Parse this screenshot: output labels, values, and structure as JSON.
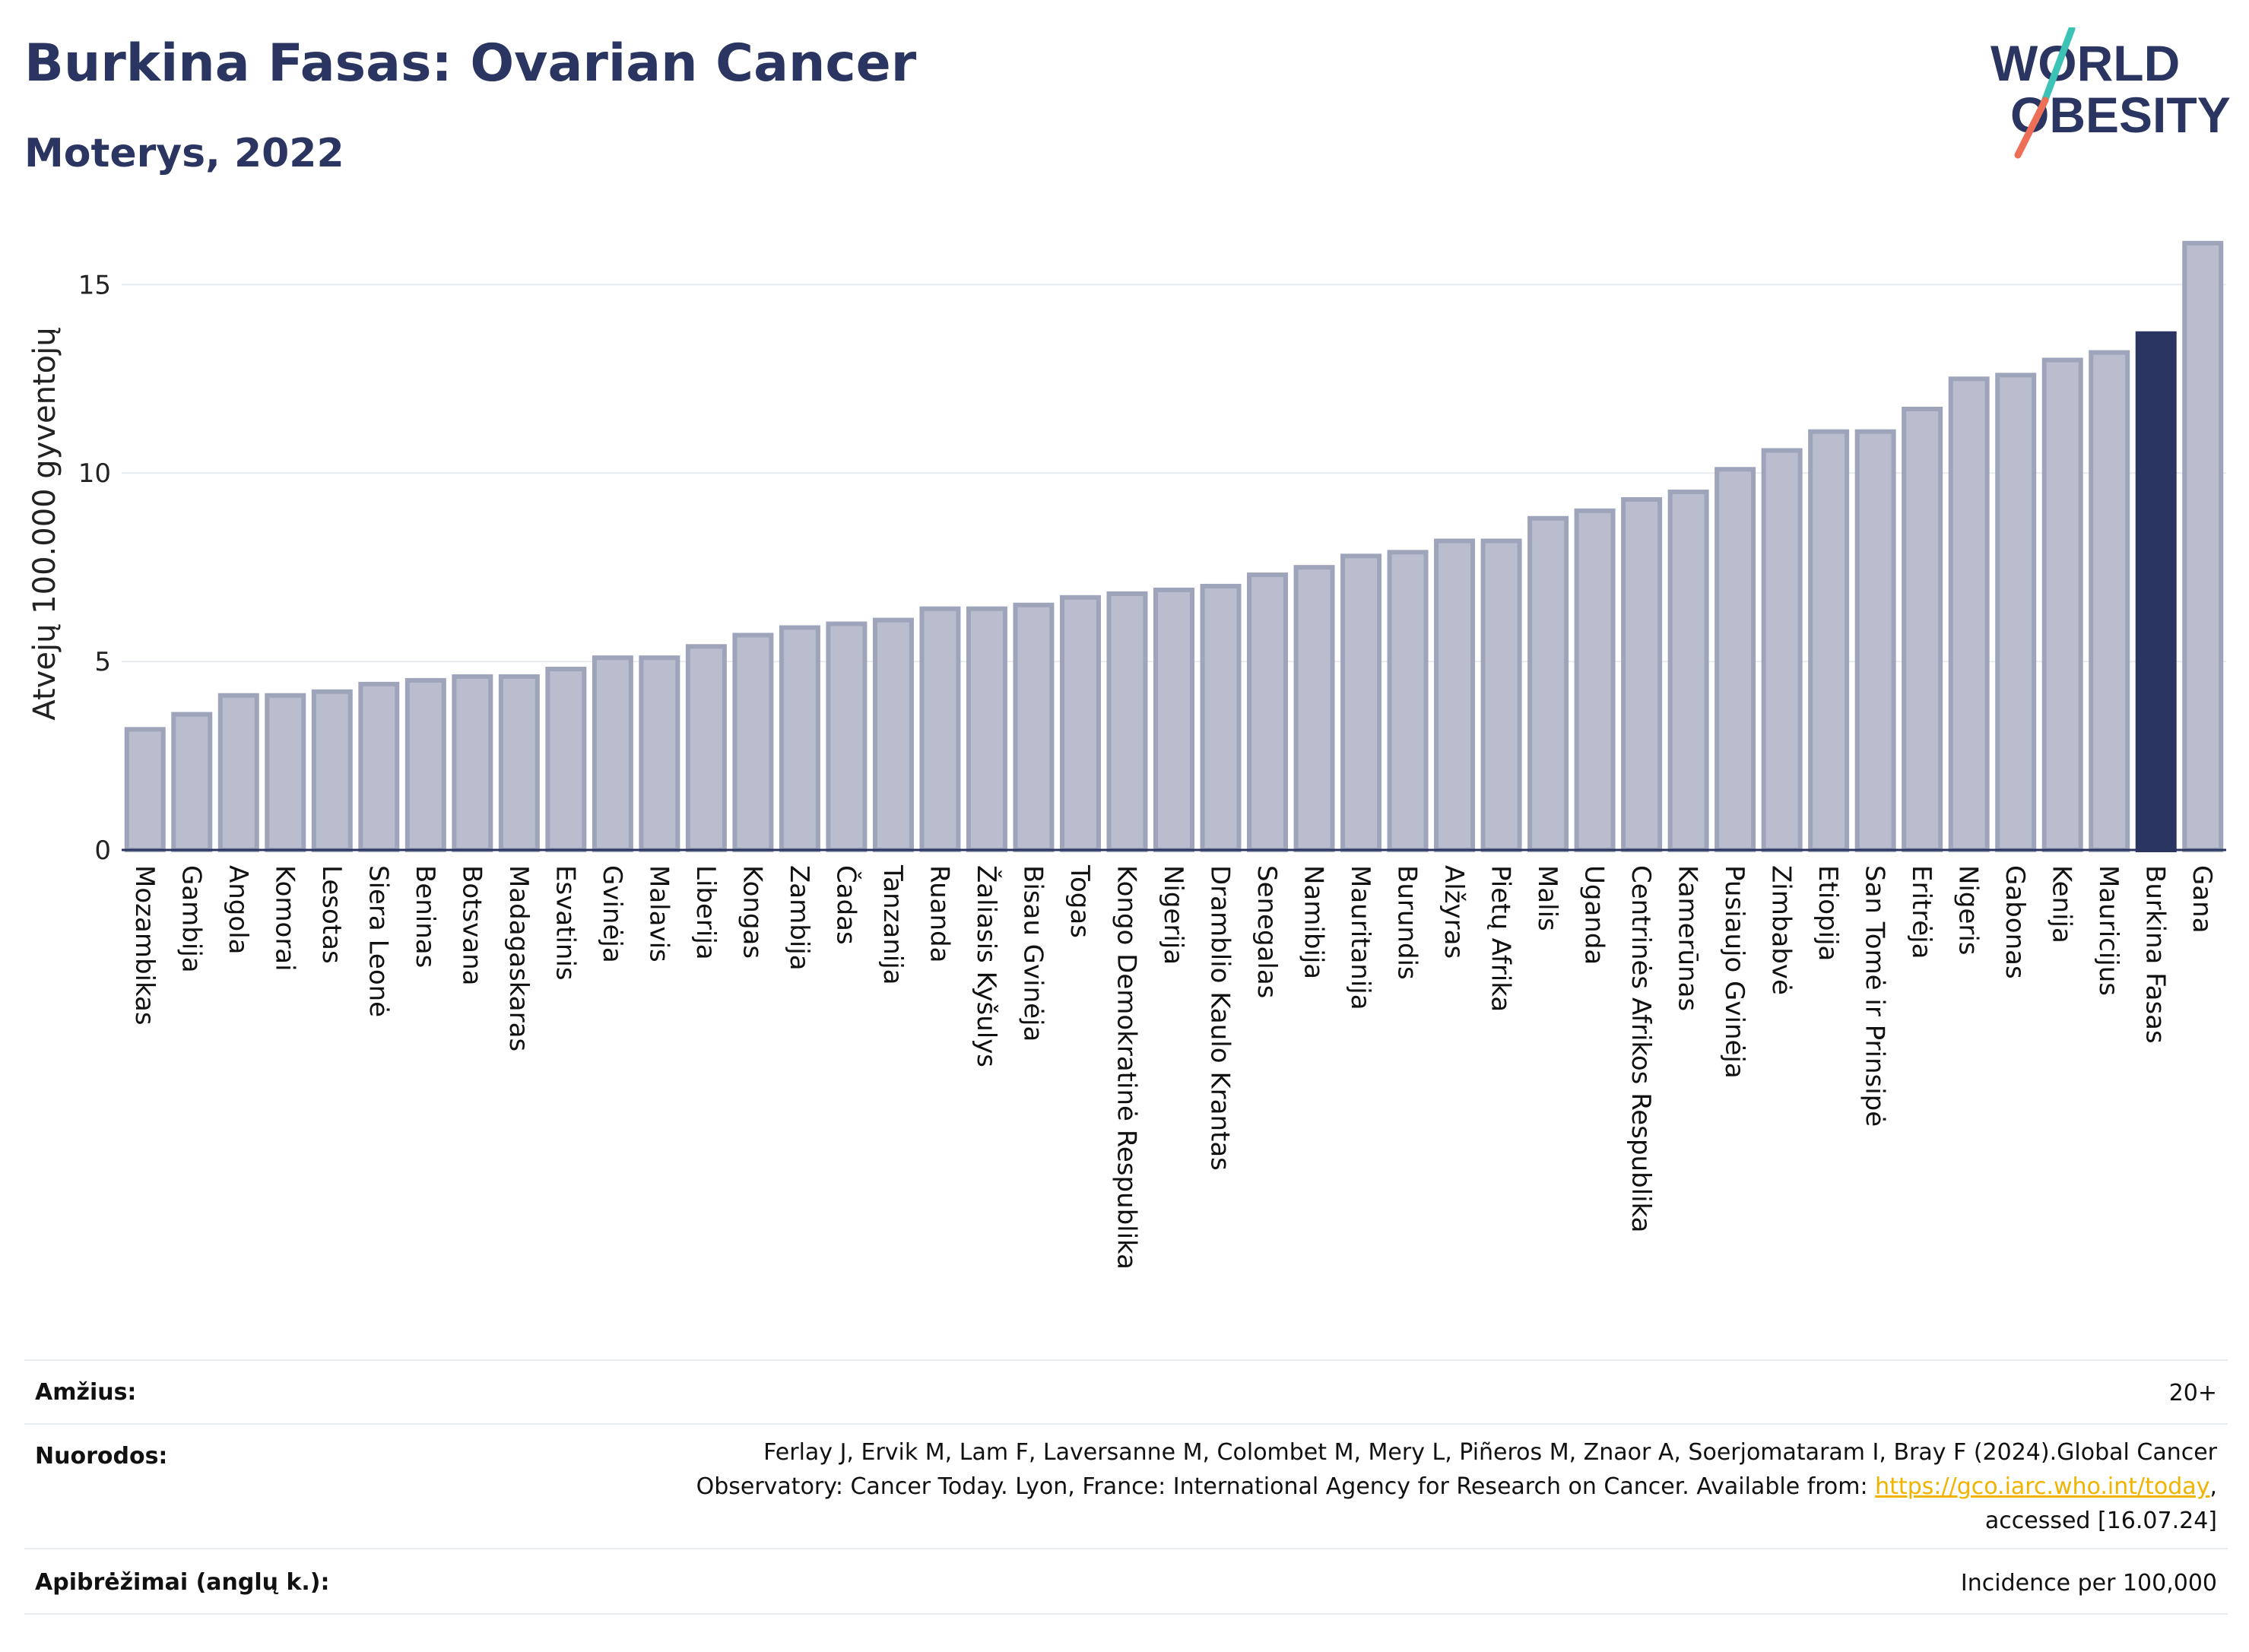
{
  "header": {
    "title": "Burkina Fasas: Ovarian Cancer",
    "subtitle": "Moterys, 2022"
  },
  "logo": {
    "line1": "WORLD",
    "line2": "OBESITY"
  },
  "colors": {
    "bar": "#b9bdcd",
    "bar_stroke": "#9ea4ba",
    "highlight": "#2b3561",
    "text": "#2b3561",
    "grid": "#e8ebf0"
  },
  "chart_data": {
    "type": "bar",
    "ylabel": "Atvejų 100.000 gyventojų",
    "ylim": [
      0,
      16.5
    ],
    "yticks": [
      0,
      5,
      10,
      15
    ],
    "grid": true,
    "highlight": "Burkina Fasas",
    "categories": [
      "Mozambikas",
      "Gambija",
      "Angola",
      "Komorai",
      "Lesotas",
      "Siera Leonė",
      "Beninas",
      "Botsvana",
      "Madagaskaras",
      "Esvatinis",
      "Gvinėja",
      "Malavis",
      "Liberija",
      "Kongas",
      "Zambija",
      "Čadas",
      "Tanzanija",
      "Ruanda",
      "Žaliasis Kyšulys",
      "Bisau Gvinėja",
      "Togas",
      "Kongo Demokratinė Respublika",
      "Nigerija",
      "Dramblio Kaulo Krantas",
      "Senegalas",
      "Namibija",
      "Mauritanija",
      "Burundis",
      "Alžyras",
      "Pietų Afrika",
      "Malis",
      "Uganda",
      "Centrinės Afrikos Respublika",
      "Kamerūnas",
      "Pusiaujo Gvinėja",
      "Zimbabvė",
      "Etiopija",
      "San Tomė ir Prinsipė",
      "Eritrėja",
      "Nigeris",
      "Gabonas",
      "Kenija",
      "Mauricijus",
      "Burkina Fasas",
      "Gana"
    ],
    "values": [
      3.2,
      3.6,
      4.1,
      4.1,
      4.2,
      4.4,
      4.5,
      4.6,
      4.6,
      4.8,
      5.1,
      5.1,
      5.4,
      5.7,
      5.9,
      6.0,
      6.1,
      6.4,
      6.4,
      6.5,
      6.7,
      6.8,
      6.9,
      7.0,
      7.3,
      7.5,
      7.8,
      7.9,
      8.2,
      8.2,
      8.8,
      9.0,
      9.3,
      9.5,
      10.1,
      10.6,
      11.1,
      11.1,
      11.7,
      12.5,
      12.6,
      13.0,
      13.2,
      13.7,
      16.1
    ]
  },
  "info": {
    "age_label": "Amžius:",
    "age_value": "20+",
    "refs_label": "Nuorodos:",
    "refs_line1": "Ferlay J, Ervik M, Lam F, Laversanne M, Colombet M, Mery L, Piñeros M, Znaor A, Soerjomataram I, Bray F (2024).Global Cancer",
    "refs_line2_pre": "Observatory: Cancer Today. Lyon, France: International Agency for Research on Cancer. Available from: ",
    "refs_link": "https://gco.iarc.who.int/today",
    "refs_line2_post": ",",
    "refs_line3": "accessed [16.07.24]",
    "defs_label": "Apibrėžimai (anglų k.):",
    "defs_value": "Incidence per 100,000"
  }
}
